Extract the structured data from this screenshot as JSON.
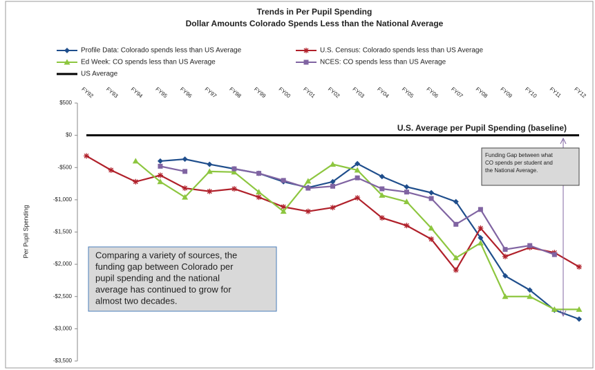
{
  "chart_data": {
    "type": "line",
    "title": [
      "Trends in Per Pupil Spending",
      "Dollar Amounts Colorado Spends Less than the National Average"
    ],
    "y_label": "Per Pupil Spending",
    "categories": [
      "FY92",
      "FY93",
      "FY94",
      "FY95",
      "FY96",
      "FY97",
      "FY98",
      "FY99",
      "FY00",
      "FY01",
      "FY02",
      "FY03",
      "FY04",
      "FY05",
      "FY06",
      "FY07",
      "FY08",
      "FY09",
      "FY10",
      "FY11",
      "FY12"
    ],
    "ylim": [
      -3500,
      500
    ],
    "yticks": [
      {
        "value": 500,
        "label": "$500"
      },
      {
        "value": 0,
        "label": "$0"
      },
      {
        "value": -500,
        "label": "-$500"
      },
      {
        "value": -1000,
        "label": "-$1,000"
      },
      {
        "value": -1500,
        "label": "-$1,500"
      },
      {
        "value": -2000,
        "label": "-$2,000"
      },
      {
        "value": -2500,
        "label": "-$2,500"
      },
      {
        "value": -3000,
        "label": "-$3,000"
      },
      {
        "value": -3500,
        "label": "-$3,500"
      }
    ],
    "grid": false,
    "series": [
      {
        "name": "Profile Data: Colorado spends less than US Average",
        "color": "#1f4e8c",
        "marker": "diamond",
        "values": [
          null,
          null,
          null,
          -400,
          -370,
          -450,
          -520,
          -590,
          -720,
          -810,
          -720,
          -440,
          -640,
          -800,
          -890,
          -1030,
          -1590,
          -2180,
          -2400,
          -2710,
          -2850
        ]
      },
      {
        "name": "U.S. Census: Colorado spends less than US Average",
        "color": "#b0202a",
        "marker": "star",
        "values": [
          -320,
          -540,
          -720,
          -620,
          -820,
          -870,
          -830,
          -960,
          -1110,
          -1180,
          -1120,
          -970,
          -1280,
          -1400,
          -1610,
          -2090,
          -1440,
          -1880,
          -1740,
          -1820,
          -2040
        ]
      },
      {
        "name": "Ed Week: CO spends less than US Average",
        "color": "#8dc63f",
        "marker": "triangle",
        "values": [
          null,
          null,
          -400,
          -720,
          -960,
          -560,
          -570,
          -880,
          -1180,
          -710,
          -450,
          -540,
          -930,
          -1030,
          -1440,
          -1900,
          -1670,
          -2500,
          -2500,
          -2700,
          -2700
        ]
      },
      {
        "name": "NCES: CO spends less than US Average",
        "color": "#8064a2",
        "marker": "square",
        "values": [
          null,
          null,
          null,
          -480,
          -560,
          null,
          -520,
          -590,
          -700,
          -820,
          -790,
          -660,
          -830,
          -880,
          -980,
          -1380,
          -1150,
          -1770,
          -1710,
          -1850,
          null
        ]
      },
      {
        "name": "US Average",
        "color": "#000000",
        "marker": "none",
        "values": [
          0,
          0,
          0,
          0,
          0,
          0,
          0,
          0,
          0,
          0,
          0,
          0,
          0,
          0,
          0,
          0,
          0,
          0,
          0,
          0,
          0
        ]
      }
    ],
    "annotations": [
      {
        "text": [
          "U.S. Average per Pupil Spending (baseline)"
        ]
      },
      {
        "text": [
          "Funding Gap between what",
          "CO spends per student and",
          "the National Average."
        ]
      },
      {
        "text": [
          "Comparing a variety of sources, the",
          "funding gap between Colorado per",
          "pupil spending and the national",
          "average has continued to grow for",
          "almost two decades."
        ]
      }
    ]
  }
}
